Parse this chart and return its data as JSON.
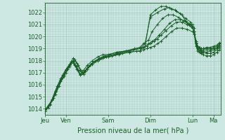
{
  "title": "",
  "xlabel": "Pression niveau de la mer( hPa )",
  "ylabel": "",
  "ylim": [
    1013.5,
    1022.8
  ],
  "yticks": [
    1014,
    1015,
    1016,
    1017,
    1018,
    1019,
    1020,
    1021,
    1022
  ],
  "bg_color": "#cde8e2",
  "grid_color": "#a0c8c0",
  "line_color": "#1a5e28",
  "x_day_labels": [
    "Jeu",
    "Ven",
    "Sam",
    "Dim",
    "Lun",
    "Ma"
  ],
  "x_day_positions": [
    0,
    24,
    72,
    120,
    168,
    192
  ],
  "total_hours": 200,
  "lines": [
    [
      0,
      1013.9,
      6,
      1014.3,
      12,
      1015.4,
      18,
      1016.4,
      22,
      1016.7,
      26,
      1017.4,
      30,
      1017.9,
      34,
      1017.6,
      38,
      1017.2,
      42,
      1017.0,
      46,
      1017.1,
      50,
      1017.5,
      54,
      1017.8,
      58,
      1018.0,
      62,
      1018.1,
      66,
      1018.2,
      72,
      1018.3,
      84,
      1018.5,
      96,
      1018.7,
      108,
      1018.8,
      114,
      1019.2,
      120,
      1021.8,
      126,
      1022.2,
      132,
      1022.5,
      138,
      1022.5,
      144,
      1022.3,
      150,
      1022.1,
      156,
      1021.8,
      160,
      1021.3,
      164,
      1021.0,
      168,
      1021.0,
      170,
      1020.7,
      172,
      1019.5,
      174,
      1018.8,
      176,
      1018.7,
      178,
      1018.6,
      180,
      1018.5,
      184,
      1018.4,
      188,
      1018.4,
      192,
      1018.5,
      196,
      1018.7,
      199,
      1018.9
    ],
    [
      0,
      1013.8,
      4,
      1014.1,
      8,
      1014.8,
      14,
      1015.9,
      20,
      1016.8,
      24,
      1017.3,
      28,
      1017.7,
      32,
      1017.9,
      36,
      1017.3,
      40,
      1016.8,
      44,
      1016.9,
      48,
      1017.3,
      52,
      1017.7,
      58,
      1018.0,
      64,
      1018.2,
      70,
      1018.3,
      76,
      1018.4,
      84,
      1018.6,
      96,
      1018.8,
      108,
      1019.0,
      114,
      1019.4,
      120,
      1021.6,
      128,
      1022.0,
      136,
      1022.3,
      142,
      1022.4,
      148,
      1022.2,
      154,
      1021.9,
      160,
      1021.5,
      166,
      1021.2,
      168,
      1020.8,
      170,
      1020.2,
      172,
      1019.2,
      174,
      1018.9,
      176,
      1018.8,
      178,
      1018.7,
      180,
      1018.7,
      184,
      1018.6,
      188,
      1018.6,
      192,
      1018.7,
      196,
      1018.9,
      199,
      1019.1
    ],
    [
      0,
      1013.8,
      6,
      1014.4,
      12,
      1015.5,
      18,
      1016.5,
      24,
      1017.2,
      28,
      1017.6,
      32,
      1018.0,
      36,
      1017.5,
      40,
      1016.9,
      44,
      1017.0,
      48,
      1017.4,
      54,
      1017.8,
      60,
      1018.1,
      66,
      1018.3,
      72,
      1018.4,
      82,
      1018.6,
      92,
      1018.8,
      102,
      1019.0,
      108,
      1019.1,
      112,
      1019.4,
      118,
      1019.7,
      122,
      1020.4,
      128,
      1021.0,
      134,
      1021.5,
      140,
      1021.8,
      146,
      1021.8,
      152,
      1021.6,
      158,
      1021.3,
      164,
      1021.0,
      168,
      1020.7,
      170,
      1020.4,
      172,
      1019.4,
      174,
      1019.0,
      176,
      1018.9,
      178,
      1018.8,
      180,
      1018.8,
      184,
      1018.7,
      188,
      1018.8,
      192,
      1018.9,
      196,
      1019.0,
      199,
      1019.2
    ],
    [
      0,
      1013.9,
      8,
      1014.7,
      16,
      1015.9,
      22,
      1016.8,
      26,
      1017.3,
      30,
      1017.8,
      34,
      1018.1,
      38,
      1017.6,
      42,
      1017.1,
      46,
      1017.1,
      50,
      1017.5,
      56,
      1017.9,
      62,
      1018.2,
      68,
      1018.4,
      74,
      1018.5,
      82,
      1018.7,
      92,
      1018.8,
      100,
      1018.9,
      108,
      1019.0,
      114,
      1019.2,
      118,
      1019.4,
      122,
      1019.6,
      126,
      1019.8,
      130,
      1020.1,
      136,
      1020.6,
      142,
      1021.1,
      148,
      1021.4,
      154,
      1021.4,
      160,
      1021.3,
      166,
      1021.0,
      168,
      1020.8,
      170,
      1020.4,
      172,
      1019.5,
      174,
      1019.1,
      176,
      1019.0,
      178,
      1018.9,
      180,
      1018.9,
      184,
      1018.9,
      188,
      1018.9,
      192,
      1019.0,
      196,
      1019.1,
      199,
      1019.3
    ],
    [
      0,
      1013.9,
      10,
      1014.9,
      18,
      1016.3,
      24,
      1017.2,
      28,
      1017.7,
      32,
      1018.2,
      36,
      1017.8,
      40,
      1017.2,
      44,
      1017.2,
      48,
      1017.6,
      54,
      1018.0,
      60,
      1018.3,
      66,
      1018.5,
      72,
      1018.5,
      82,
      1018.7,
      92,
      1018.8,
      100,
      1018.9,
      108,
      1019.0,
      112,
      1019.1,
      116,
      1019.2,
      120,
      1019.4,
      124,
      1019.6,
      128,
      1019.8,
      132,
      1020.1,
      138,
      1020.5,
      144,
      1020.9,
      150,
      1021.2,
      156,
      1021.2,
      162,
      1021.0,
      168,
      1020.7,
      170,
      1020.4,
      172,
      1019.6,
      174,
      1019.2,
      176,
      1019.1,
      178,
      1019.0,
      180,
      1019.0,
      184,
      1019.0,
      188,
      1019.0,
      192,
      1019.1,
      196,
      1019.2,
      199,
      1019.4
    ],
    [
      0,
      1013.8,
      12,
      1015.2,
      20,
      1016.6,
      24,
      1017.0,
      28,
      1017.5,
      32,
      1018.0,
      36,
      1017.5,
      40,
      1016.8,
      44,
      1016.9,
      48,
      1017.3,
      54,
      1017.7,
      60,
      1018.0,
      66,
      1018.2,
      72,
      1018.3,
      80,
      1018.5,
      88,
      1018.6,
      96,
      1018.7,
      104,
      1018.8,
      108,
      1018.8,
      112,
      1018.9,
      116,
      1019.0,
      120,
      1019.1,
      124,
      1019.2,
      128,
      1019.4,
      132,
      1019.6,
      138,
      1020.0,
      144,
      1020.4,
      150,
      1020.7,
      156,
      1020.7,
      162,
      1020.6,
      168,
      1020.4,
      170,
      1020.2,
      172,
      1019.6,
      174,
      1019.2,
      176,
      1019.1,
      178,
      1019.0,
      180,
      1019.0,
      184,
      1019.1,
      188,
      1019.1,
      192,
      1019.2,
      196,
      1019.3,
      199,
      1019.5
    ]
  ]
}
